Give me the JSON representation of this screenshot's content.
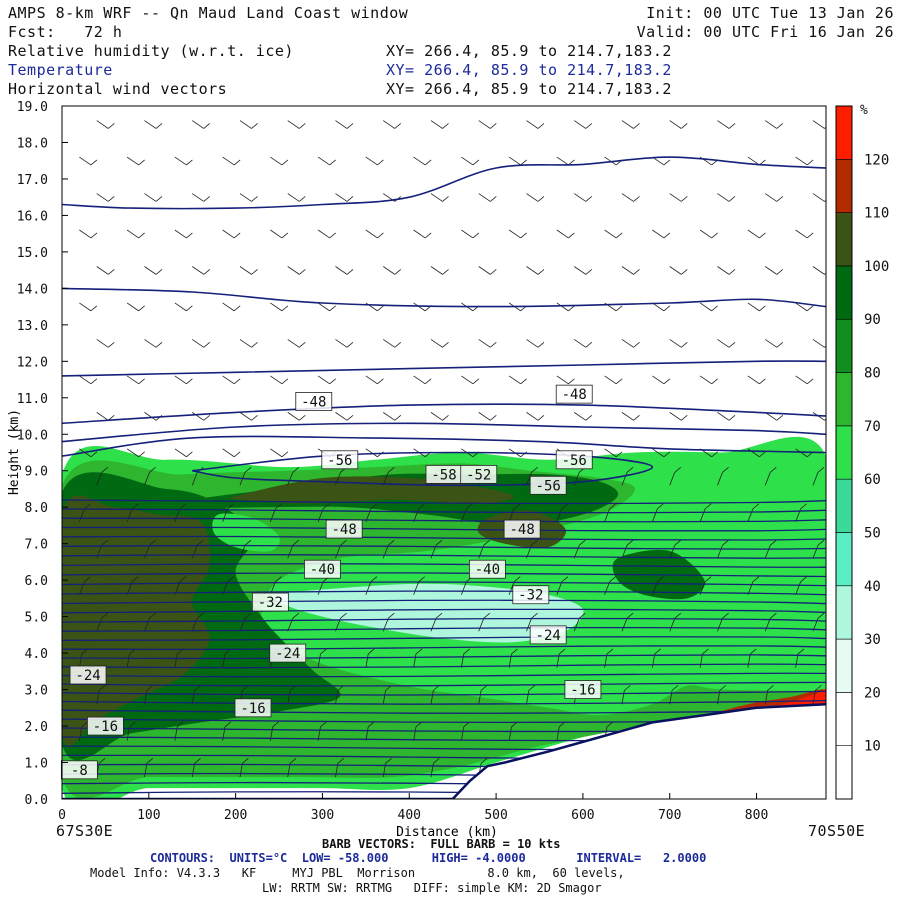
{
  "header": {
    "title": "AMPS 8-km WRF -- Qn Maud Land Coast window",
    "init": "Init: 00 UTC Tue 13 Jan 26",
    "fcst": "Fcst:   72 h",
    "valid": "Valid: 00 UTC Fri 16 Jan 26",
    "fields": [
      {
        "label": "Relative humidity (w.r.t. ice)",
        "xy": "XY= 266.4, 85.9 to 214.7,183.2"
      },
      {
        "label": "Temperature",
        "xy": "XY= 266.4, 85.9 to 214.7,183.2"
      },
      {
        "label": "Horizontal wind vectors",
        "xy": "XY= 266.4, 85.9 to 214.7,183.2"
      }
    ]
  },
  "footer": {
    "left_end": "67S30E",
    "right_end": "70S50E",
    "barb": "BARB VECTORS:  FULL BARB = 10 kts",
    "contours": "CONTOURS:  UNITS=°C  LOW= -58.000      HIGH= -4.0000       INTERVAL=   2.0000",
    "model1": "Model Info: V4.3.3   KF     MYJ PBL  Morrison          8.0 km,  60 levels,",
    "model2": "LW: RRTM SW: RRTMG   DIFF: simple KM: 2D Smagor"
  },
  "chart_data": {
    "type": "heatmap",
    "title": "",
    "xlabel": "Distance (km)",
    "ylabel": "Height (km)",
    "xlim": [
      0,
      880
    ],
    "ylim": [
      0,
      19
    ],
    "xticks": [
      0,
      100,
      200,
      300,
      400,
      500,
      600,
      700,
      800
    ],
    "yticks": [
      "0.0",
      "1.0",
      "2.0",
      "3.0",
      "4.0",
      "5.0",
      "6.0",
      "7.0",
      "8.0",
      "9.0",
      "10.0",
      "11.0",
      "12.0",
      "13.0",
      "14.0",
      "15.0",
      "16.0",
      "17.0",
      "18.0",
      "19.0"
    ],
    "colorbar": {
      "unit": "%",
      "levels": [
        10,
        20,
        30,
        40,
        50,
        60,
        70,
        80,
        90,
        100,
        110,
        120
      ],
      "colors": [
        "#ffffff",
        "#ffffff",
        "#e6fbf2",
        "#aef7dc",
        "#59edc3",
        "#3bd99a",
        "#2ee04a",
        "#2fb62f",
        "#108f1f",
        "#006a12",
        "#3b5315",
        "#b22a00",
        "#ff1d00"
      ]
    },
    "terrain": {
      "x": [
        0,
        450,
        470,
        490,
        510,
        560,
        620,
        680,
        740,
        800,
        880
      ],
      "y": [
        0,
        0,
        0.5,
        0.9,
        1.0,
        1.3,
        1.7,
        2.1,
        2.3,
        2.5,
        2.6
      ]
    },
    "rh_regions": [
      {
        "rh": 60,
        "x": [
          0,
          120,
          260,
          360,
          460,
          560,
          660,
          760,
          880,
          880,
          700,
          600,
          500,
          400,
          300,
          200,
          100,
          0
        ],
        "y": [
          8.9,
          9.3,
          9.1,
          9.3,
          9.5,
          9.3,
          9.5,
          9.5,
          9.4,
          2.7,
          2.3,
          1.7,
          1.0,
          0.3,
          0.3,
          0.3,
          0.3,
          0.3
        ]
      },
      {
        "rh": 75,
        "x": [
          0,
          140,
          260,
          360,
          460,
          540,
          620,
          660,
          620,
          520,
          420,
          320,
          250,
          230,
          260,
          300,
          360,
          420,
          480,
          560,
          620,
          680,
          720,
          760,
          880,
          880,
          700,
          560,
          460,
          380,
          280,
          200,
          100,
          0
        ],
        "y": [
          8.6,
          8.9,
          9.0,
          9.1,
          9.2,
          9.0,
          8.8,
          8.5,
          7.8,
          7.2,
          6.8,
          6.6,
          6.0,
          5.0,
          4.2,
          3.7,
          3.3,
          3.0,
          2.8,
          2.5,
          2.3,
          2.6,
          3.1,
          3.0,
          2.9,
          2.5,
          2.1,
          1.5,
          0.9,
          0.6,
          0.6,
          0.6,
          0.6,
          0.6
        ]
      },
      {
        "rh": 95,
        "x": [
          0,
          120,
          180,
          220,
          200,
          230,
          260,
          290,
          320,
          250,
          160,
          80,
          0
        ],
        "y": [
          8.4,
          8.5,
          8.1,
          7.2,
          6.2,
          5.0,
          4.2,
          3.5,
          2.8,
          2.4,
          2.1,
          1.8,
          1.5
        ]
      },
      {
        "rh": 105,
        "x": [
          0,
          60,
          110,
          160,
          170,
          150,
          170,
          140,
          90,
          40,
          0
        ],
        "y": [
          7.8,
          8.0,
          7.8,
          7.6,
          6.4,
          5.4,
          4.4,
          3.4,
          2.8,
          2.2,
          1.8
        ]
      },
      {
        "rh": 95,
        "x": [
          150,
          280,
          380,
          470,
          560,
          620,
          640,
          600,
          520,
          420,
          330,
          240,
          160
        ],
        "y": [
          8.2,
          8.6,
          8.9,
          8.9,
          8.9,
          8.7,
          8.3,
          7.8,
          7.5,
          7.8,
          8.0,
          8.0,
          8.0
        ]
      },
      {
        "rh": 105,
        "x": [
          200,
          300,
          400,
          470,
          520,
          480,
          380,
          280,
          210
        ],
        "y": [
          8.3,
          8.8,
          8.8,
          8.6,
          8.3,
          8.1,
          8.2,
          8.1,
          8.2
        ]
      },
      {
        "rh": 105,
        "x": [
          490,
          540,
          580,
          560,
          510,
          480
        ],
        "y": [
          7.7,
          7.9,
          7.4,
          6.9,
          7.0,
          7.3
        ]
      },
      {
        "rh": 95,
        "x": [
          640,
          700,
          740,
          720,
          670,
          640
        ],
        "y": [
          6.6,
          6.8,
          6.0,
          5.5,
          5.6,
          6.0
        ]
      },
      {
        "rh": 65,
        "x": [
          180,
          220,
          250,
          240,
          200,
          175
        ],
        "y": [
          7.8,
          7.7,
          7.2,
          6.8,
          6.9,
          7.3
        ]
      },
      {
        "rh": 35,
        "x": [
          250,
          330,
          420,
          500,
          560,
          600,
          580,
          520,
          440,
          360,
          300,
          260
        ],
        "y": [
          5.6,
          5.8,
          5.9,
          5.8,
          5.6,
          5.2,
          4.6,
          4.3,
          4.4,
          4.7,
          5.0,
          5.3
        ]
      },
      {
        "rh": 115,
        "x": [
          690,
          740,
          790,
          840,
          880,
          880,
          820,
          760,
          700
        ],
        "y": [
          2.1,
          2.3,
          2.6,
          2.8,
          3.0,
          2.5,
          2.5,
          2.3,
          2.1
        ]
      },
      {
        "rh": 125,
        "x": [
          780,
          830,
          870,
          880,
          880,
          840,
          800
        ],
        "y": [
          2.4,
          2.6,
          2.9,
          3.0,
          2.6,
          2.5,
          2.4
        ]
      }
    ],
    "temperature_contours": [
      {
        "x": [
          0,
          80,
          200,
          300,
          400,
          500,
          600,
          700,
          800,
          880
        ],
        "y": [
          16.3,
          16.2,
          16.2,
          16.3,
          16.5,
          17.3,
          17.4,
          17.6,
          17.4,
          17.3
        ]
      },
      {
        "x": [
          0,
          150,
          300,
          500,
          700,
          800,
          880
        ],
        "y": [
          14.0,
          13.9,
          13.6,
          13.5,
          13.6,
          13.7,
          13.5
        ]
      },
      {
        "x": [
          0,
          200,
          400,
          600,
          800,
          880
        ],
        "y": [
          11.6,
          11.7,
          11.8,
          11.9,
          12.0,
          12.0
        ]
      },
      {
        "x": [
          0,
          200,
          400,
          600,
          800,
          880
        ],
        "y": [
          10.3,
          10.6,
          10.8,
          10.8,
          10.6,
          10.5
        ]
      },
      {
        "x": [
          0,
          200,
          400,
          600,
          800,
          880
        ],
        "y": [
          9.8,
          10.2,
          10.3,
          10.2,
          10.1,
          10.0
        ]
      },
      {
        "x": [
          0,
          150,
          350,
          550,
          700,
          880
        ],
        "y": [
          9.4,
          9.9,
          9.9,
          9.8,
          9.6,
          9.5
        ]
      },
      {
        "x": [
          150,
          300,
          450,
          600,
          680,
          600,
          450,
          300,
          200,
          150
        ],
        "y": [
          9.0,
          9.4,
          9.5,
          9.4,
          9.1,
          8.7,
          8.6,
          8.7,
          8.8,
          9.0
        ]
      }
    ],
    "temperature_labels": [
      {
        "text": "-48",
        "x": 290,
        "y": 10.9
      },
      {
        "text": "-48",
        "x": 590,
        "y": 11.1
      },
      {
        "text": "-56",
        "x": 320,
        "y": 9.3
      },
      {
        "text": "-56",
        "x": 590,
        "y": 9.3
      },
      {
        "text": "-58",
        "x": 440,
        "y": 8.9
      },
      {
        "text": "-52",
        "x": 480,
        "y": 8.9
      },
      {
        "text": "-56",
        "x": 560,
        "y": 8.6
      },
      {
        "text": "-48",
        "x": 325,
        "y": 7.4
      },
      {
        "text": "-48",
        "x": 530,
        "y": 7.4
      },
      {
        "text": "-40",
        "x": 300,
        "y": 6.3
      },
      {
        "text": "-40",
        "x": 490,
        "y": 6.3
      },
      {
        "text": "-32",
        "x": 240,
        "y": 5.4
      },
      {
        "text": "-32",
        "x": 540,
        "y": 5.6
      },
      {
        "text": "-24",
        "x": 560,
        "y": 4.5
      },
      {
        "text": "-24",
        "x": 260,
        "y": 4.0
      },
      {
        "text": "-24",
        "x": 30,
        "y": 3.4
      },
      {
        "text": "-16",
        "x": 600,
        "y": 3.0
      },
      {
        "text": "-16",
        "x": 220,
        "y": 2.5
      },
      {
        "text": "-16",
        "x": 50,
        "y": 2.0
      },
      {
        "text": "-8",
        "x": 20,
        "y": 0.8
      }
    ]
  }
}
